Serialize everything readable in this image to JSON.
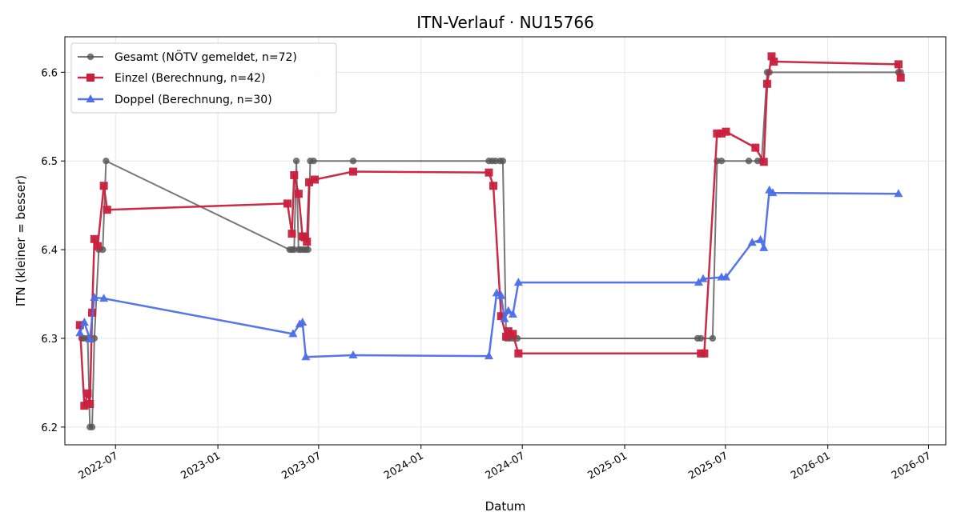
{
  "chart_data": {
    "type": "line",
    "title": "ITN-Verlauf · NU15766",
    "xlabel": "Datum",
    "ylabel": "ITN  (kleiner = besser)",
    "xlim": [
      "2022-04-01",
      "2026-08-01"
    ],
    "ylim": [
      6.18,
      6.64
    ],
    "x_ticks": [
      "2022-07-01",
      "2023-01-01",
      "2023-07-01",
      "2024-01-01",
      "2024-07-01",
      "2025-01-01",
      "2025-07-01",
      "2026-01-01",
      "2026-07-01"
    ],
    "x_tick_labels": [
      "2022-07",
      "2023-01",
      "2023-07",
      "2024-01",
      "2024-07",
      "2025-01",
      "2025-07",
      "2026-01",
      "2026-07"
    ],
    "y_ticks": [
      6.2,
      6.3,
      6.4,
      6.5,
      6.6
    ],
    "y_tick_labels": [
      "6.2",
      "6.3",
      "6.4",
      "6.5",
      "6.6"
    ],
    "grid": true,
    "legend_position": "top-left",
    "series": [
      {
        "name": "Gesamt (NÖTV gemeldet, n=72)",
        "color": "#555555",
        "marker": "circle",
        "points": [
          [
            "2022-05-01",
            6.3
          ],
          [
            "2022-05-06",
            6.3
          ],
          [
            "2022-05-12",
            6.3
          ],
          [
            "2022-05-16",
            6.2
          ],
          [
            "2022-05-20",
            6.2
          ],
          [
            "2022-05-24",
            6.3
          ],
          [
            "2022-06-01",
            6.4
          ],
          [
            "2022-06-08",
            6.4
          ],
          [
            "2022-06-14",
            6.5
          ],
          [
            "2023-05-10",
            6.4
          ],
          [
            "2023-05-14",
            6.4
          ],
          [
            "2023-05-18",
            6.4
          ],
          [
            "2023-05-22",
            6.5
          ],
          [
            "2023-05-26",
            6.4
          ],
          [
            "2023-05-30",
            6.4
          ],
          [
            "2023-06-04",
            6.4
          ],
          [
            "2023-06-08",
            6.4
          ],
          [
            "2023-06-12",
            6.4
          ],
          [
            "2023-06-16",
            6.5
          ],
          [
            "2023-06-22",
            6.5
          ],
          [
            "2023-09-01",
            6.5
          ],
          [
            "2024-05-02",
            6.5
          ],
          [
            "2024-05-08",
            6.5
          ],
          [
            "2024-05-14",
            6.5
          ],
          [
            "2024-05-22",
            6.5
          ],
          [
            "2024-05-27",
            6.5
          ],
          [
            "2024-06-02",
            6.3
          ],
          [
            "2024-06-08",
            6.3
          ],
          [
            "2024-06-14",
            6.3
          ],
          [
            "2024-06-22",
            6.3
          ],
          [
            "2025-05-12",
            6.3
          ],
          [
            "2025-05-18",
            6.3
          ],
          [
            "2025-06-08",
            6.3
          ],
          [
            "2025-06-16",
            6.5
          ],
          [
            "2025-06-24",
            6.5
          ],
          [
            "2025-08-12",
            6.5
          ],
          [
            "2025-08-28",
            6.5
          ],
          [
            "2025-09-04",
            6.5
          ],
          [
            "2025-09-14",
            6.6
          ],
          [
            "2025-09-18",
            6.6
          ],
          [
            "2026-05-08",
            6.6
          ],
          [
            "2026-05-12",
            6.6
          ]
        ]
      },
      {
        "name": "Einzel (Berechnung, n=42)",
        "color": "#c8203d",
        "marker": "square",
        "points": [
          [
            "2022-04-28",
            6.315
          ],
          [
            "2022-05-06",
            6.224
          ],
          [
            "2022-05-12",
            6.238
          ],
          [
            "2022-05-16",
            6.226
          ],
          [
            "2022-05-20",
            6.329
          ],
          [
            "2022-05-24",
            6.412
          ],
          [
            "2022-05-30",
            6.404
          ],
          [
            "2022-06-10",
            6.472
          ],
          [
            "2022-06-16",
            6.445
          ],
          [
            "2023-05-06",
            6.452
          ],
          [
            "2023-05-14",
            6.418
          ],
          [
            "2023-05-18",
            6.484
          ],
          [
            "2023-05-26",
            6.463
          ],
          [
            "2023-06-02",
            6.415
          ],
          [
            "2023-06-06",
            6.414
          ],
          [
            "2023-06-10",
            6.409
          ],
          [
            "2023-06-14",
            6.476
          ],
          [
            "2023-06-24",
            6.479
          ],
          [
            "2023-09-01",
            6.488
          ],
          [
            "2024-05-02",
            6.487
          ],
          [
            "2024-05-10",
            6.472
          ],
          [
            "2024-05-24",
            6.325
          ],
          [
            "2024-06-02",
            6.302
          ],
          [
            "2024-06-06",
            6.308
          ],
          [
            "2024-06-14",
            6.305
          ],
          [
            "2024-06-24",
            6.283
          ],
          [
            "2025-05-18",
            6.283
          ],
          [
            "2025-05-24",
            6.283
          ],
          [
            "2025-06-16",
            6.531
          ],
          [
            "2025-06-24",
            6.531
          ],
          [
            "2025-07-02",
            6.533
          ],
          [
            "2025-08-24",
            6.515
          ],
          [
            "2025-09-08",
            6.499
          ],
          [
            "2025-09-14",
            6.587
          ],
          [
            "2025-09-22",
            6.618
          ],
          [
            "2025-09-26",
            6.612
          ],
          [
            "2026-05-08",
            6.609
          ],
          [
            "2026-05-12",
            6.594
          ]
        ]
      },
      {
        "name": "Doppel (Berechnung, n=30)",
        "color": "#4c6ee8",
        "marker": "triangle",
        "points": [
          [
            "2022-04-28",
            6.306
          ],
          [
            "2022-05-06",
            6.318
          ],
          [
            "2022-05-16",
            6.299
          ],
          [
            "2022-05-24",
            6.346
          ],
          [
            "2022-06-10",
            6.345
          ],
          [
            "2023-05-16",
            6.305
          ],
          [
            "2023-05-28",
            6.316
          ],
          [
            "2023-06-02",
            6.318
          ],
          [
            "2023-06-08",
            6.279
          ],
          [
            "2023-09-01",
            6.281
          ],
          [
            "2024-05-02",
            6.28
          ],
          [
            "2024-05-16",
            6.351
          ],
          [
            "2024-05-24",
            6.348
          ],
          [
            "2024-05-30",
            6.322
          ],
          [
            "2024-06-06",
            6.331
          ],
          [
            "2024-06-14",
            6.327
          ],
          [
            "2024-06-24",
            6.363
          ],
          [
            "2025-05-14",
            6.363
          ],
          [
            "2025-05-22",
            6.367
          ],
          [
            "2025-06-24",
            6.369
          ],
          [
            "2025-07-02",
            6.369
          ],
          [
            "2025-08-18",
            6.408
          ],
          [
            "2025-09-02",
            6.411
          ],
          [
            "2025-09-08",
            6.402
          ],
          [
            "2025-09-18",
            6.467
          ],
          [
            "2025-09-24",
            6.464
          ],
          [
            "2026-05-08",
            6.463
          ]
        ]
      }
    ]
  }
}
